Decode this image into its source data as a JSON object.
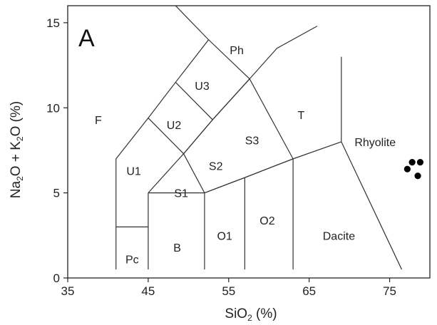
{
  "chart_data": {
    "type": "scatter",
    "panel_letter": "A",
    "xlabel": {
      "base": "SiO",
      "sub": "2",
      "rest": "  (%)"
    },
    "ylabel": {
      "part1": "Na",
      "sub1": "2",
      "part2": "O + K",
      "sub2": "2",
      "part3": "O  (%)"
    },
    "xlim": [
      35,
      80
    ],
    "ylim": [
      0,
      16
    ],
    "xticks": [
      35,
      45,
      55,
      65,
      75
    ],
    "yticks": [
      0,
      5,
      10,
      15
    ],
    "grid": false,
    "fields": [
      {
        "label": "F",
        "x": 38.8,
        "y": 9.3
      },
      {
        "label": "Ph",
        "x": 56.0,
        "y": 13.4
      },
      {
        "label": "U3",
        "x": 51.7,
        "y": 11.3
      },
      {
        "label": "U2",
        "x": 48.2,
        "y": 9.0
      },
      {
        "label": "U1",
        "x": 43.2,
        "y": 6.3
      },
      {
        "label": "S3",
        "x": 57.9,
        "y": 8.1
      },
      {
        "label": "S2",
        "x": 53.4,
        "y": 6.6
      },
      {
        "label": "S1",
        "x": 49.1,
        "y": 5.0
      },
      {
        "label": "T",
        "x": 64.0,
        "y": 9.6
      },
      {
        "label": "Rhyolite",
        "x": 73.2,
        "y": 8.0
      },
      {
        "label": "Pc",
        "x": 43.0,
        "y": 1.1
      },
      {
        "label": "B",
        "x": 48.6,
        "y": 1.8
      },
      {
        "label": "O1",
        "x": 54.5,
        "y": 2.5
      },
      {
        "label": "O2",
        "x": 59.8,
        "y": 3.4
      },
      {
        "label": "Dacite",
        "x": 68.7,
        "y": 2.5
      }
    ],
    "boundaries": [
      [
        [
          41,
          0.5
        ],
        [
          41,
          7
        ],
        [
          45,
          9.4
        ],
        [
          48.4,
          11.5
        ],
        [
          52.5,
          14
        ],
        [
          48.4,
          16
        ]
      ],
      [
        [
          52.5,
          14
        ],
        [
          57.6,
          11.7
        ],
        [
          53,
          9.3
        ],
        [
          49.4,
          7.3
        ],
        [
          45,
          9.4
        ]
      ],
      [
        [
          48.4,
          11.5
        ],
        [
          53,
          9.3
        ],
        [
          57.6,
          11.7
        ],
        [
          63,
          7
        ],
        [
          57,
          5.9
        ],
        [
          52,
          5
        ],
        [
          49.4,
          7.3
        ],
        [
          53,
          9.3
        ]
      ],
      [
        [
          57.6,
          11.7
        ],
        [
          61,
          13.5
        ],
        [
          66,
          14.8
        ]
      ],
      [
        [
          45,
          5
        ],
        [
          49.4,
          7.3
        ]
      ],
      [
        [
          45,
          5
        ],
        [
          52,
          5
        ],
        [
          57,
          5.9
        ],
        [
          63,
          7
        ],
        [
          69,
          8
        ],
        [
          69,
          13
        ]
      ],
      [
        [
          69,
          8
        ],
        [
          76.5,
          0.5
        ]
      ],
      [
        [
          41,
          3
        ],
        [
          45,
          3
        ]
      ],
      [
        [
          45,
          0.5
        ],
        [
          45,
          5
        ]
      ],
      [
        [
          52,
          0.5
        ],
        [
          52,
          5
        ]
      ],
      [
        [
          57,
          0.5
        ],
        [
          57,
          5.9
        ]
      ],
      [
        [
          63,
          0.5
        ],
        [
          63,
          7
        ]
      ]
    ],
    "points": [
      {
        "x": 77.2,
        "y": 6.4
      },
      {
        "x": 77.8,
        "y": 6.8
      },
      {
        "x": 78.5,
        "y": 6.0
      },
      {
        "x": 78.8,
        "y": 6.8
      }
    ]
  }
}
